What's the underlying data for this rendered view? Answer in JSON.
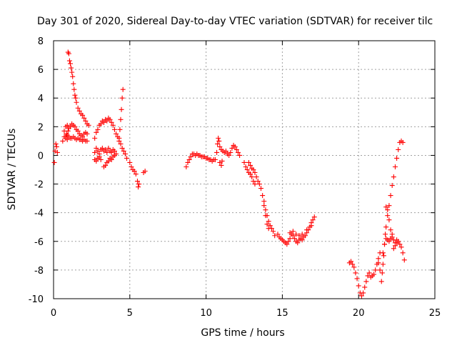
{
  "chart_data": {
    "type": "scatter",
    "title": "Day 301 of 2020, Sidereal Day-to-day VTEC variation (SDTVAR) for receiver tilc",
    "xlabel": "GPS time / hours",
    "ylabel": "SDTVAR / TECUs",
    "xlim": [
      0,
      25
    ],
    "ylim": [
      -10,
      8
    ],
    "x_ticks": [
      "0",
      "5",
      "10",
      "15",
      "20",
      "25"
    ],
    "y_ticks": [
      "8",
      "6",
      "4",
      "2",
      "0",
      "-2",
      "-4",
      "-6",
      "-8",
      "-10"
    ],
    "grid": true,
    "marker": "plus",
    "color": "#ff0000",
    "series": [
      {
        "points": [
          [
            0.05,
            -0.5
          ],
          [
            0.1,
            0.3
          ],
          [
            0.15,
            0.8
          ],
          [
            0.2,
            0.6
          ],
          [
            0.25,
            0.2
          ],
          [
            0.6,
            1.0
          ],
          [
            0.7,
            1.3
          ],
          [
            0.8,
            1.2
          ],
          [
            0.9,
            1.1
          ],
          [
            1.0,
            1.3
          ],
          [
            1.1,
            1.2
          ],
          [
            1.2,
            1.2
          ],
          [
            1.3,
            1.3
          ],
          [
            1.4,
            1.2
          ],
          [
            1.5,
            1.1
          ],
          [
            1.6,
            1.2
          ],
          [
            1.7,
            1.1
          ],
          [
            1.8,
            1.1
          ],
          [
            1.9,
            1.0
          ],
          [
            2.0,
            1.1
          ],
          [
            2.1,
            1.0
          ],
          [
            2.2,
            1.0
          ],
          [
            0.7,
            1.7
          ],
          [
            0.8,
            2.0
          ],
          [
            0.9,
            2.1
          ],
          [
            1.0,
            1.9
          ],
          [
            1.1,
            2.0
          ],
          [
            1.2,
            2.2
          ],
          [
            1.3,
            2.1
          ],
          [
            1.4,
            2.0
          ],
          [
            1.5,
            1.8
          ],
          [
            1.6,
            1.7
          ],
          [
            1.7,
            1.5
          ],
          [
            1.8,
            1.4
          ],
          [
            1.9,
            1.3
          ],
          [
            2.0,
            1.5
          ],
          [
            2.1,
            1.6
          ],
          [
            2.2,
            1.5
          ],
          [
            0.8,
            1.3
          ],
          [
            0.85,
            1.5
          ],
          [
            0.9,
            1.4
          ],
          [
            0.95,
            1.7
          ],
          [
            0.95,
            7.2
          ],
          [
            1.0,
            7.1
          ],
          [
            1.05,
            6.6
          ],
          [
            1.1,
            6.4
          ],
          [
            1.15,
            6.1
          ],
          [
            1.2,
            5.8
          ],
          [
            1.25,
            5.5
          ],
          [
            1.3,
            5.0
          ],
          [
            1.35,
            4.6
          ],
          [
            1.4,
            4.2
          ],
          [
            1.45,
            4.0
          ],
          [
            1.5,
            3.7
          ],
          [
            1.6,
            3.3
          ],
          [
            1.7,
            3.1
          ],
          [
            1.8,
            2.9
          ],
          [
            1.9,
            2.8
          ],
          [
            2.0,
            2.6
          ],
          [
            2.1,
            2.4
          ],
          [
            2.2,
            2.2
          ],
          [
            2.3,
            2.1
          ],
          [
            2.7,
            0.2
          ],
          [
            2.8,
            0.5
          ],
          [
            2.9,
            0.3
          ],
          [
            3.0,
            0.1
          ],
          [
            3.1,
            0.4
          ],
          [
            3.2,
            0.5
          ],
          [
            3.3,
            0.3
          ],
          [
            3.4,
            0.4
          ],
          [
            3.5,
            0.2
          ],
          [
            3.6,
            0.5
          ],
          [
            3.7,
            0.3
          ],
          [
            3.8,
            0.2
          ],
          [
            3.9,
            0.4
          ],
          [
            4.0,
            0.3
          ],
          [
            4.1,
            0.1
          ],
          [
            2.7,
            -0.3
          ],
          [
            2.8,
            -0.4
          ],
          [
            2.9,
            -0.2
          ],
          [
            3.0,
            -0.1
          ],
          [
            3.1,
            -0.3
          ],
          [
            3.3,
            -0.8
          ],
          [
            3.4,
            -0.7
          ],
          [
            3.5,
            -0.5
          ],
          [
            3.6,
            -0.4
          ],
          [
            3.7,
            -0.2
          ],
          [
            3.8,
            -0.3
          ],
          [
            3.9,
            -0.1
          ],
          [
            4.0,
            0.0
          ],
          [
            2.7,
            1.2
          ],
          [
            2.8,
            1.6
          ],
          [
            2.9,
            1.8
          ],
          [
            3.0,
            2.1
          ],
          [
            3.1,
            2.2
          ],
          [
            3.2,
            2.4
          ],
          [
            3.3,
            2.3
          ],
          [
            3.4,
            2.5
          ],
          [
            3.5,
            2.4
          ],
          [
            3.6,
            2.6
          ],
          [
            3.7,
            2.5
          ],
          [
            3.8,
            2.3
          ],
          [
            3.9,
            2.1
          ],
          [
            4.0,
            1.8
          ],
          [
            4.1,
            1.5
          ],
          [
            4.2,
            1.3
          ],
          [
            4.3,
            1.0
          ],
          [
            4.4,
            0.8
          ],
          [
            4.5,
            0.5
          ],
          [
            4.6,
            0.3
          ],
          [
            4.7,
            0.1
          ],
          [
            4.8,
            -0.2
          ],
          [
            4.3,
            1.2
          ],
          [
            4.35,
            1.8
          ],
          [
            4.4,
            2.5
          ],
          [
            4.45,
            3.2
          ],
          [
            4.5,
            4.0
          ],
          [
            4.55,
            4.6
          ],
          [
            5.0,
            -0.5
          ],
          [
            5.1,
            -0.8
          ],
          [
            5.2,
            -1.0
          ],
          [
            5.3,
            -1.1
          ],
          [
            5.4,
            -1.3
          ],
          [
            5.5,
            -1.8
          ],
          [
            5.55,
            -2.2
          ],
          [
            5.6,
            -2.0
          ],
          [
            5.9,
            -1.2
          ],
          [
            6.0,
            -1.1
          ],
          [
            8.7,
            -0.8
          ],
          [
            8.8,
            -0.5
          ],
          [
            8.9,
            -0.3
          ],
          [
            9.0,
            -0.1
          ],
          [
            9.1,
            0.1
          ],
          [
            9.2,
            0.1
          ],
          [
            9.3,
            0.0
          ],
          [
            9.4,
            0.1
          ],
          [
            9.5,
            0.0
          ],
          [
            9.6,
            0.0
          ],
          [
            9.7,
            -0.1
          ],
          [
            9.8,
            -0.1
          ],
          [
            9.9,
            -0.1
          ],
          [
            10.0,
            -0.2
          ],
          [
            10.1,
            -0.2
          ],
          [
            10.2,
            -0.3
          ],
          [
            10.3,
            -0.3
          ],
          [
            10.4,
            -0.4
          ],
          [
            10.5,
            -0.3
          ],
          [
            10.6,
            -0.3
          ],
          [
            10.7,
            0.2
          ],
          [
            10.75,
            0.8
          ],
          [
            10.8,
            1.2
          ],
          [
            10.85,
            1.0
          ],
          [
            10.9,
            0.6
          ],
          [
            11.0,
            0.4
          ],
          [
            11.1,
            0.3
          ],
          [
            11.2,
            0.2
          ],
          [
            11.3,
            0.3
          ],
          [
            11.4,
            0.1
          ],
          [
            11.5,
            0.0
          ],
          [
            11.6,
            0.2
          ],
          [
            11.7,
            0.5
          ],
          [
            11.8,
            0.7
          ],
          [
            11.9,
            0.6
          ],
          [
            12.0,
            0.4
          ],
          [
            12.1,
            0.2
          ],
          [
            12.2,
            0.0
          ],
          [
            10.9,
            -0.5
          ],
          [
            11.0,
            -0.7
          ],
          [
            11.05,
            -0.4
          ],
          [
            12.5,
            -0.5
          ],
          [
            12.6,
            -0.8
          ],
          [
            12.7,
            -1.0
          ],
          [
            12.8,
            -1.2
          ],
          [
            12.9,
            -1.3
          ],
          [
            13.0,
            -1.5
          ],
          [
            13.1,
            -1.8
          ],
          [
            13.2,
            -2.0
          ],
          [
            12.8,
            -0.5
          ],
          [
            12.9,
            -0.7
          ],
          [
            13.0,
            -0.9
          ],
          [
            13.1,
            -1.0
          ],
          [
            13.2,
            -1.2
          ],
          [
            13.3,
            -1.5
          ],
          [
            13.4,
            -1.8
          ],
          [
            13.5,
            -2.0
          ],
          [
            13.6,
            -2.3
          ],
          [
            13.7,
            -2.8
          ],
          [
            13.8,
            -3.2
          ],
          [
            13.9,
            -3.8
          ],
          [
            14.0,
            -4.2
          ],
          [
            14.1,
            -4.6
          ],
          [
            14.2,
            -4.9
          ],
          [
            14.3,
            -5.1
          ],
          [
            14.4,
            -5.3
          ],
          [
            14.5,
            -5.6
          ],
          [
            13.8,
            -3.5
          ],
          [
            13.9,
            -4.2
          ],
          [
            14.0,
            -4.8
          ],
          [
            14.1,
            -5.1
          ],
          [
            14.7,
            -5.5
          ],
          [
            14.8,
            -5.7
          ],
          [
            14.9,
            -5.8
          ],
          [
            15.0,
            -5.9
          ],
          [
            15.1,
            -6.0
          ],
          [
            15.2,
            -6.1
          ],
          [
            15.3,
            -6.2
          ],
          [
            15.4,
            -6.0
          ],
          [
            15.5,
            -5.8
          ],
          [
            15.6,
            -5.5
          ],
          [
            15.7,
            -5.6
          ],
          [
            15.8,
            -5.8
          ],
          [
            15.9,
            -6.0
          ],
          [
            16.0,
            -6.1
          ],
          [
            16.1,
            -5.9
          ],
          [
            16.2,
            -5.8
          ],
          [
            16.3,
            -5.9
          ],
          [
            16.4,
            -5.7
          ],
          [
            16.5,
            -5.6
          ],
          [
            16.6,
            -5.4
          ],
          [
            16.7,
            -5.2
          ],
          [
            16.8,
            -5.0
          ],
          [
            16.9,
            -4.7
          ],
          [
            17.0,
            -4.5
          ],
          [
            17.1,
            -4.3
          ],
          [
            15.5,
            -5.4
          ],
          [
            15.7,
            -5.3
          ],
          [
            15.9,
            -5.5
          ],
          [
            16.1,
            -5.6
          ],
          [
            16.3,
            -5.5
          ],
          [
            16.6,
            -5.2
          ],
          [
            16.9,
            -4.9
          ],
          [
            19.4,
            -7.5
          ],
          [
            19.5,
            -7.4
          ],
          [
            19.6,
            -7.6
          ],
          [
            19.7,
            -7.8
          ],
          [
            19.8,
            -8.2
          ],
          [
            19.9,
            -8.6
          ],
          [
            20.0,
            -9.1
          ],
          [
            20.1,
            -9.6
          ],
          [
            20.2,
            -9.8
          ],
          [
            20.3,
            -9.6
          ],
          [
            20.4,
            -9.2
          ],
          [
            20.5,
            -8.8
          ],
          [
            20.6,
            -8.4
          ],
          [
            20.7,
            -8.2
          ],
          [
            20.8,
            -8.5
          ],
          [
            20.9,
            -8.4
          ],
          [
            21.0,
            -8.3
          ],
          [
            21.1,
            -8.0
          ],
          [
            21.2,
            -7.6
          ],
          [
            21.3,
            -7.2
          ],
          [
            21.4,
            -6.8
          ],
          [
            21.3,
            -7.5
          ],
          [
            21.4,
            -8.0
          ],
          [
            21.5,
            -8.8
          ],
          [
            21.55,
            -8.2
          ],
          [
            21.6,
            -7.6
          ],
          [
            21.65,
            -7.0
          ],
          [
            21.7,
            -6.2
          ],
          [
            21.75,
            -5.5
          ],
          [
            21.8,
            -5.0
          ],
          [
            21.9,
            -4.2
          ],
          [
            22.0,
            -3.5
          ],
          [
            22.1,
            -2.8
          ],
          [
            22.2,
            -2.1
          ],
          [
            22.3,
            -1.5
          ],
          [
            22.4,
            -0.8
          ],
          [
            22.5,
            -0.2
          ],
          [
            22.6,
            0.4
          ],
          [
            22.7,
            0.9
          ],
          [
            22.8,
            1.0
          ],
          [
            22.9,
            0.9
          ],
          [
            21.6,
            -6.8
          ],
          [
            21.7,
            -6.2
          ],
          [
            21.8,
            -5.8
          ],
          [
            21.9,
            -5.9
          ],
          [
            22.0,
            -6.0
          ],
          [
            22.1,
            -5.8
          ],
          [
            22.2,
            -5.7
          ],
          [
            22.3,
            -5.9
          ],
          [
            22.4,
            -6.1
          ],
          [
            22.5,
            -5.9
          ],
          [
            22.6,
            -6.0
          ],
          [
            22.7,
            -6.2
          ],
          [
            22.8,
            -6.4
          ],
          [
            22.9,
            -6.8
          ],
          [
            23.0,
            -7.3
          ],
          [
            21.8,
            -3.6
          ],
          [
            21.9,
            -3.8
          ],
          [
            22.0,
            -4.5
          ],
          [
            22.1,
            -5.2
          ],
          [
            22.2,
            -5.5
          ],
          [
            22.3,
            -6.5
          ],
          [
            22.4,
            -6.3
          ],
          [
            22.5,
            -6.1
          ]
        ]
      }
    ]
  }
}
